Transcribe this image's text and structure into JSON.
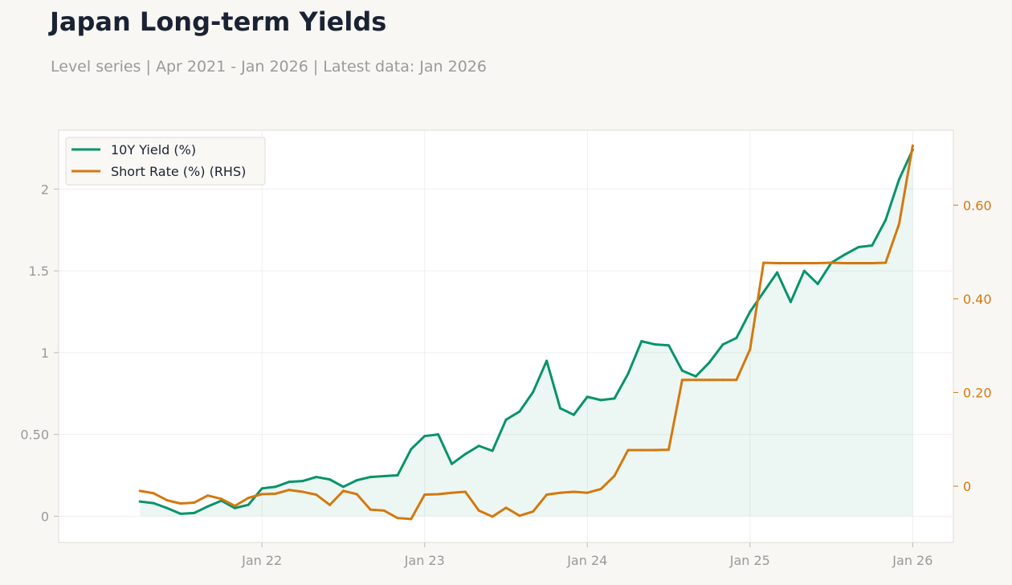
{
  "header": {
    "title": "Japan Long-term Yields",
    "subtitle": "Level series | Apr 2021 - Jan 2026 | Latest data: Jan 2026"
  },
  "colors": {
    "series_10y": "#08936a",
    "series_short": "#d4780f",
    "fill_10y": "#08936a",
    "tick_left": "#999999",
    "tick_right": "#d4780f",
    "tick_bottom": "#999999"
  },
  "chart_data": {
    "type": "line",
    "x_dates": [
      "2021-04",
      "2021-05",
      "2021-06",
      "2021-07",
      "2021-08",
      "2021-09",
      "2021-10",
      "2021-11",
      "2021-12",
      "2022-01",
      "2022-02",
      "2022-03",
      "2022-04",
      "2022-05",
      "2022-06",
      "2022-07",
      "2022-08",
      "2022-09",
      "2022-10",
      "2022-11",
      "2022-12",
      "2023-01",
      "2023-02",
      "2023-03",
      "2023-04",
      "2023-05",
      "2023-06",
      "2023-07",
      "2023-08",
      "2023-09",
      "2023-10",
      "2023-11",
      "2023-12",
      "2024-01",
      "2024-02",
      "2024-03",
      "2024-04",
      "2024-05",
      "2024-06",
      "2024-07",
      "2024-08",
      "2024-09",
      "2024-10",
      "2024-11",
      "2024-12",
      "2025-01",
      "2025-02",
      "2025-03",
      "2025-04",
      "2025-05",
      "2025-06",
      "2025-07",
      "2025-08",
      "2025-09",
      "2025-10",
      "2025-11",
      "2025-12",
      "2026-01"
    ],
    "series": [
      {
        "name": "10Y Yield (%)",
        "axis": "left",
        "fill": true,
        "values": [
          0.09,
          0.08,
          0.05,
          0.015,
          0.02,
          0.06,
          0.095,
          0.05,
          0.07,
          0.17,
          0.18,
          0.21,
          0.215,
          0.24,
          0.225,
          0.18,
          0.22,
          0.24,
          0.245,
          0.25,
          0.41,
          0.49,
          0.5,
          0.32,
          0.38,
          0.43,
          0.4,
          0.59,
          0.64,
          0.76,
          0.95,
          0.66,
          0.62,
          0.73,
          0.71,
          0.72,
          0.87,
          1.07,
          1.05,
          1.045,
          0.89,
          0.855,
          0.94,
          1.05,
          1.09,
          1.25,
          1.37,
          1.49,
          1.31,
          1.5,
          1.42,
          1.55,
          1.6,
          1.645,
          1.655,
          1.81,
          2.06,
          2.24
        ]
      },
      {
        "name": "Short Rate (%) (RHS)",
        "axis": "right",
        "fill": false,
        "values": [
          -0.01,
          -0.015,
          -0.03,
          -0.037,
          -0.035,
          -0.02,
          -0.027,
          -0.042,
          -0.025,
          -0.017,
          -0.016,
          -0.008,
          -0.012,
          -0.018,
          -0.04,
          -0.01,
          -0.017,
          -0.05,
          -0.052,
          -0.068,
          -0.07,
          -0.018,
          -0.017,
          -0.014,
          -0.012,
          -0.052,
          -0.065,
          -0.046,
          -0.063,
          -0.054,
          -0.018,
          -0.014,
          -0.012,
          -0.014,
          -0.006,
          0.022,
          0.077,
          0.077,
          0.077,
          0.078,
          0.227,
          0.227,
          0.227,
          0.227,
          0.227,
          0.292,
          0.477,
          0.476,
          0.476,
          0.476,
          0.476,
          0.477,
          0.476,
          0.476,
          0.476,
          0.477,
          0.56,
          0.727
        ]
      }
    ],
    "x_ticks": [
      {
        "date": "2022-01",
        "label": "Jan 22"
      },
      {
        "date": "2023-01",
        "label": "Jan 23"
      },
      {
        "date": "2024-01",
        "label": "Jan 24"
      },
      {
        "date": "2025-01",
        "label": "Jan 25"
      },
      {
        "date": "2026-01",
        "label": "Jan 26"
      }
    ],
    "y_left": {
      "range": [
        -0.16,
        2.36
      ],
      "ticks": [
        0,
        0.5,
        1,
        1.5,
        2
      ],
      "tick_labels": [
        "0",
        "0.50",
        "1",
        "1.5",
        "2"
      ]
    },
    "y_right": {
      "range": [
        -0.12,
        0.76
      ],
      "ticks": [
        0,
        0.2,
        0.4,
        0.6
      ],
      "tick_labels": [
        "0",
        "0.20",
        "0.40",
        "0.60"
      ]
    },
    "x_range": [
      "2020-10",
      "2026-04"
    ],
    "grid": true,
    "legend_placement": "top-left"
  }
}
